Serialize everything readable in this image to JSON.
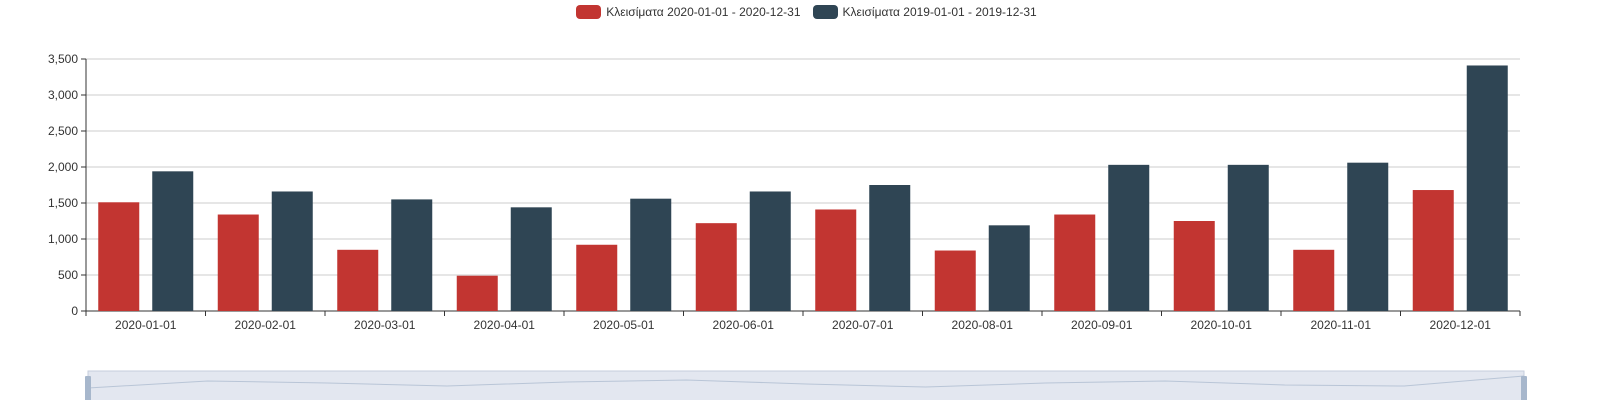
{
  "chart_data": {
    "type": "bar",
    "categories": [
      "2020-01-01",
      "2020-02-01",
      "2020-03-01",
      "2020-04-01",
      "2020-05-01",
      "2020-06-01",
      "2020-07-01",
      "2020-08-01",
      "2020-09-01",
      "2020-10-01",
      "2020-11-01",
      "2020-12-01"
    ],
    "series": [
      {
        "name": "Κλεισίματα 2020-01-01 - 2020-12-31",
        "color": "#c23531",
        "values": [
          1510,
          1340,
          850,
          490,
          920,
          1220,
          1410,
          840,
          1340,
          1250,
          850,
          1680
        ]
      },
      {
        "name": "Κλεισίματα 2019-01-01 - 2019-12-31",
        "color": "#2f4554",
        "values": [
          1940,
          1660,
          1550,
          1440,
          1560,
          1660,
          1750,
          1190,
          2030,
          2030,
          2060,
          3410
        ]
      }
    ],
    "ylim": [
      0,
      3500
    ],
    "yticks": [
      0,
      500,
      1000,
      1500,
      2000,
      2500,
      3000,
      3500
    ],
    "ytick_labels": [
      "0",
      "500",
      "1,000",
      "1,500",
      "2,000",
      "2,500",
      "3,000",
      "3,500"
    ],
    "grid": true,
    "legend_position": "top-center",
    "title": "",
    "xlabel": "",
    "ylabel": ""
  },
  "colors": {
    "axis": "#333333",
    "grid": "#cccccc",
    "zoom_fill": "#e3e7f0",
    "zoom_border": "#c6cedc",
    "zoom_handle": "#a7b7cc"
  }
}
